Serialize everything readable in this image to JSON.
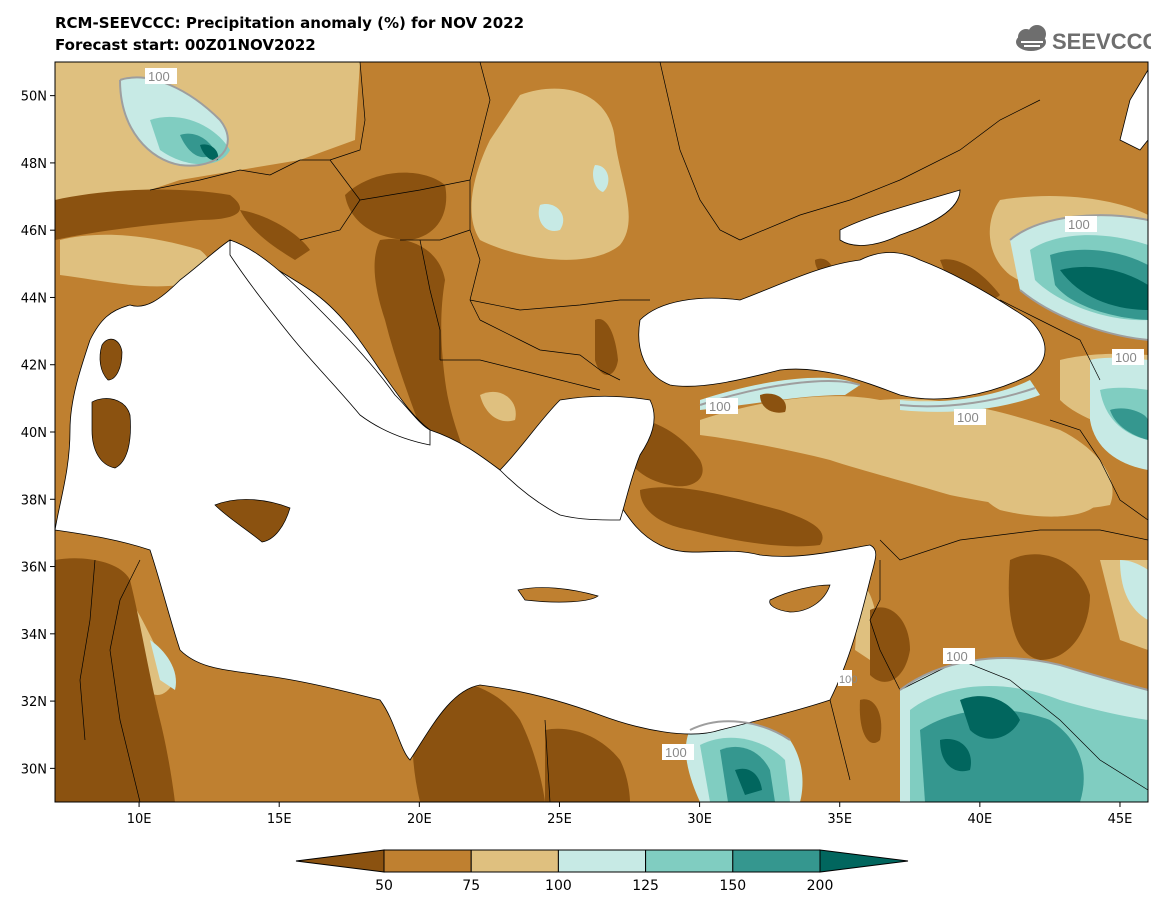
{
  "header": {
    "title": "RCM-SEEVCCC: Precipitation anomaly (%) for NOV 2022",
    "forecast_start": "Forecast start: 00Z01NOV2022"
  },
  "logo": {
    "text": "SEEVCCC",
    "icon": "cloud-icon"
  },
  "map": {
    "lon_range": [
      7,
      46
    ],
    "lat_range": [
      29,
      51
    ],
    "lon_ticks": [
      "10E",
      "15E",
      "20E",
      "25E",
      "30E",
      "35E",
      "40E",
      "45E"
    ],
    "lat_ticks": [
      "50N",
      "48N",
      "46N",
      "44N",
      "42N",
      "40N",
      "38N",
      "36N",
      "34N",
      "32N",
      "30N"
    ],
    "contour_labels": [
      "100",
      "100",
      "100",
      "100",
      "100",
      "100",
      "100",
      "100",
      "100"
    ]
  },
  "colorbar": {
    "levels": [
      "50",
      "75",
      "100",
      "125",
      "150",
      "200"
    ],
    "colors": [
      "#8b5210",
      "#bf8030",
      "#dfc07f",
      "#c7eae5",
      "#80cdc1",
      "#35978f",
      "#01665e"
    ]
  }
}
